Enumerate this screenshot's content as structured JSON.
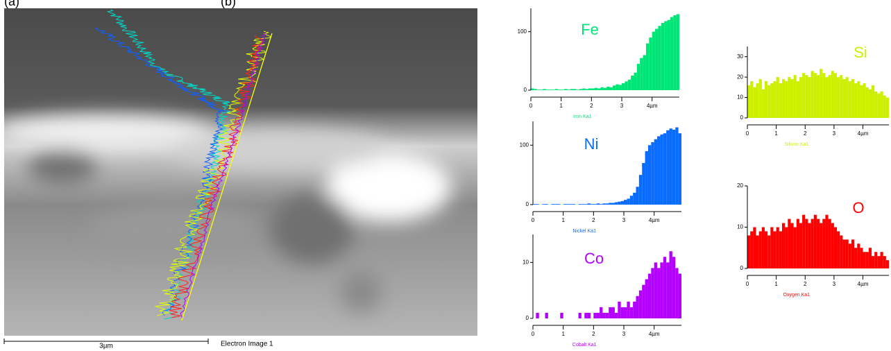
{
  "labels": {
    "a": "(a)",
    "b": "(b)"
  },
  "image": {
    "scale_bar": "3µm",
    "caption": "Electron Image 1"
  },
  "chart_data": [
    {
      "type": "bar",
      "title": "Fe",
      "x_label": "Iron Ka1",
      "color": "#00e676",
      "x": [
        0.05,
        0.15,
        0.25,
        0.35,
        0.45,
        0.55,
        0.65,
        0.75,
        0.85,
        0.95,
        1.05,
        1.15,
        1.25,
        1.35,
        1.45,
        1.55,
        1.65,
        1.75,
        1.85,
        1.95,
        2.05,
        2.15,
        2.25,
        2.35,
        2.45,
        2.55,
        2.65,
        2.75,
        2.85,
        2.95,
        3.05,
        3.15,
        3.25,
        3.35,
        3.45,
        3.55,
        3.65,
        3.75,
        3.85,
        3.95,
        4.05,
        4.15,
        4.25,
        4.35,
        4.45,
        4.55,
        4.65,
        4.75,
        4.85
      ],
      "values": [
        3,
        2,
        1,
        1,
        2,
        1,
        1,
        1,
        2,
        1,
        1,
        2,
        1,
        2,
        2,
        1,
        2,
        3,
        2,
        3,
        3,
        4,
        3,
        5,
        4,
        6,
        5,
        8,
        10,
        9,
        12,
        15,
        18,
        25,
        30,
        45,
        55,
        60,
        80,
        90,
        100,
        105,
        110,
        115,
        118,
        120,
        125,
        128,
        130
      ],
      "xlim": [
        0,
        4.9
      ],
      "xticks": [
        0,
        1,
        2,
        3,
        {
          "value": 4,
          "label": "4µm"
        }
      ],
      "ylim": [
        0,
        140
      ],
      "yticks": [
        0,
        100
      ]
    },
    {
      "type": "bar",
      "title": "Ni",
      "x_label": "Nickel Ka1",
      "color": "#0a6cff",
      "x": [
        0.05,
        0.15,
        0.25,
        0.35,
        0.45,
        0.55,
        0.65,
        0.75,
        0.85,
        0.95,
        1.05,
        1.15,
        1.25,
        1.35,
        1.45,
        1.55,
        1.65,
        1.75,
        1.85,
        1.95,
        2.05,
        2.15,
        2.25,
        2.35,
        2.45,
        2.55,
        2.65,
        2.75,
        2.85,
        2.95,
        3.05,
        3.15,
        3.25,
        3.35,
        3.45,
        3.55,
        3.65,
        3.75,
        3.85,
        3.95,
        4.05,
        4.15,
        4.25,
        4.35,
        4.45,
        4.55,
        4.65,
        4.75,
        4.85
      ],
      "values": [
        1,
        1,
        0,
        1,
        1,
        0,
        1,
        1,
        1,
        0,
        1,
        1,
        1,
        1,
        0,
        1,
        1,
        1,
        2,
        1,
        1,
        2,
        1,
        2,
        2,
        3,
        3,
        4,
        5,
        6,
        8,
        10,
        15,
        20,
        30,
        50,
        70,
        90,
        100,
        105,
        110,
        115,
        118,
        120,
        125,
        128,
        126,
        130,
        120
      ],
      "xlim": [
        0,
        4.9
      ],
      "xticks": [
        0,
        1,
        2,
        3,
        {
          "value": 4,
          "label": "4µm"
        }
      ],
      "ylim": [
        0,
        140
      ],
      "yticks": [
        0,
        100
      ]
    },
    {
      "type": "bar",
      "title": "Co",
      "x_label": "Cobalt Ka1",
      "color": "#b400ff",
      "x": [
        0.05,
        0.15,
        0.25,
        0.35,
        0.45,
        0.55,
        0.65,
        0.75,
        0.85,
        0.95,
        1.05,
        1.15,
        1.25,
        1.35,
        1.45,
        1.55,
        1.65,
        1.75,
        1.85,
        1.95,
        2.05,
        2.15,
        2.25,
        2.35,
        2.45,
        2.55,
        2.65,
        2.75,
        2.85,
        2.95,
        3.05,
        3.15,
        3.25,
        3.35,
        3.45,
        3.55,
        3.65,
        3.75,
        3.85,
        3.95,
        4.05,
        4.15,
        4.25,
        4.35,
        4.45,
        4.55,
        4.65,
        4.75,
        4.85
      ],
      "values": [
        0,
        1,
        0,
        0,
        1,
        0,
        0,
        0,
        0,
        1,
        0,
        0,
        0,
        0,
        0,
        1,
        0,
        1,
        1,
        0,
        1,
        1,
        2,
        1,
        1,
        2,
        2,
        1,
        3,
        2,
        2,
        3,
        2,
        3,
        4,
        5,
        6,
        7,
        8,
        9,
        10,
        9,
        10,
        11,
        10,
        12,
        11,
        9,
        8
      ],
      "xlim": [
        0,
        4.9
      ],
      "xticks": [
        0,
        1,
        2,
        3,
        {
          "value": 4,
          "label": "4µm"
        }
      ],
      "ylim": [
        0,
        15
      ],
      "yticks": [
        0,
        10
      ]
    },
    {
      "type": "bar",
      "title": "Si",
      "x_label": "Silicon Ka1",
      "color": "#ccf000",
      "x": [
        0.05,
        0.15,
        0.25,
        0.35,
        0.45,
        0.55,
        0.65,
        0.75,
        0.85,
        0.95,
        1.05,
        1.15,
        1.25,
        1.35,
        1.45,
        1.55,
        1.65,
        1.75,
        1.85,
        1.95,
        2.05,
        2.15,
        2.25,
        2.35,
        2.45,
        2.55,
        2.65,
        2.75,
        2.85,
        2.95,
        3.05,
        3.15,
        3.25,
        3.35,
        3.45,
        3.55,
        3.65,
        3.75,
        3.85,
        3.95,
        4.05,
        4.15,
        4.25,
        4.35,
        4.45,
        4.55,
        4.65,
        4.75,
        4.85
      ],
      "values": [
        16,
        18,
        15,
        17,
        19,
        14,
        18,
        16,
        17,
        18,
        20,
        17,
        19,
        18,
        20,
        19,
        21,
        18,
        20,
        22,
        21,
        20,
        23,
        22,
        21,
        24,
        22,
        20,
        21,
        23,
        22,
        20,
        21,
        19,
        20,
        18,
        19,
        17,
        18,
        16,
        17,
        15,
        14,
        16,
        13,
        12,
        13,
        11,
        10
      ],
      "xlim": [
        0,
        4.9
      ],
      "xticks": [
        0,
        1,
        2,
        3,
        {
          "value": 4,
          "label": "4µm"
        }
      ],
      "ylim": [
        0,
        35
      ],
      "yticks": [
        0,
        10,
        20,
        30
      ]
    },
    {
      "type": "bar",
      "title": "O",
      "x_label": "Oxygen Ka1",
      "color": "#ff0000",
      "x": [
        0.05,
        0.15,
        0.25,
        0.35,
        0.45,
        0.55,
        0.65,
        0.75,
        0.85,
        0.95,
        1.05,
        1.15,
        1.25,
        1.35,
        1.45,
        1.55,
        1.65,
        1.75,
        1.85,
        1.95,
        2.05,
        2.15,
        2.25,
        2.35,
        2.45,
        2.55,
        2.65,
        2.75,
        2.85,
        2.95,
        3.05,
        3.15,
        3.25,
        3.35,
        3.45,
        3.55,
        3.65,
        3.75,
        3.85,
        3.95,
        4.05,
        4.15,
        4.25,
        4.35,
        4.45,
        4.55,
        4.65,
        4.75,
        4.85
      ],
      "values": [
        8,
        9,
        10,
        8,
        9,
        10,
        9,
        8,
        10,
        9,
        10,
        9,
        11,
        10,
        12,
        11,
        10,
        12,
        11,
        13,
        12,
        11,
        12,
        13,
        12,
        11,
        12,
        13,
        12,
        11,
        10,
        9,
        8,
        7,
        7,
        6,
        7,
        5,
        6,
        5,
        4,
        4,
        5,
        3,
        4,
        3,
        4,
        3,
        2
      ],
      "xlim": [
        0,
        4.9
      ],
      "xticks": [
        0,
        1,
        2,
        3,
        {
          "value": 4,
          "label": "4µm"
        }
      ],
      "ylim": [
        0,
        20
      ],
      "yticks": [
        0,
        10,
        20
      ]
    }
  ]
}
